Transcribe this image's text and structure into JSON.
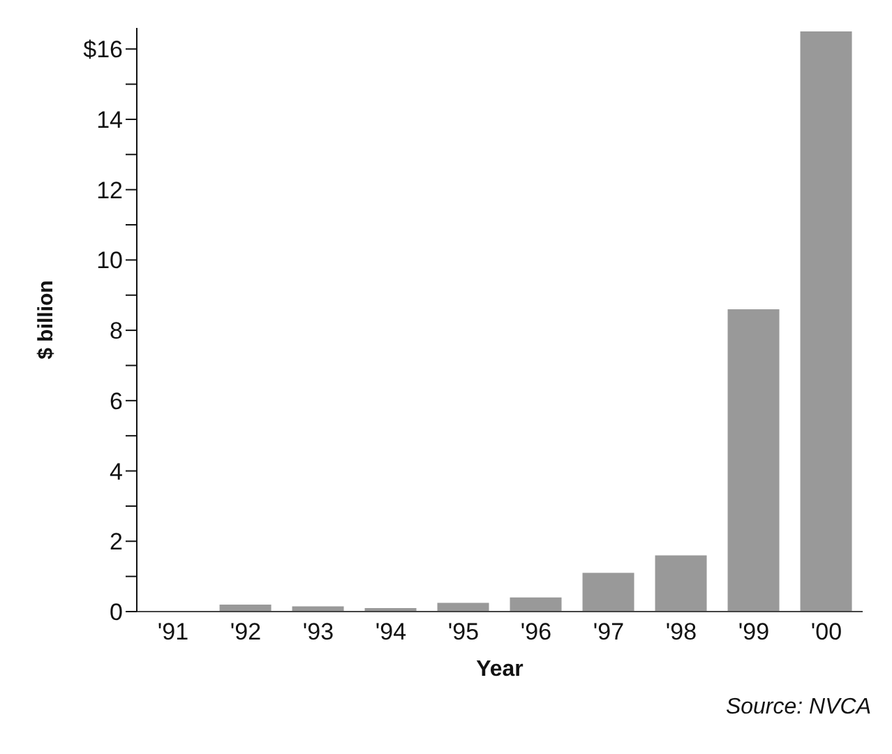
{
  "chart_data": {
    "type": "bar",
    "xlabel": "Year",
    "ylabel": "$ billion",
    "categories": [
      "'91",
      "'92",
      "'93",
      "'94",
      "'95",
      "'96",
      "'97",
      "'98",
      "'99",
      "'00"
    ],
    "values": [
      0,
      0.2,
      0.15,
      0.1,
      0.25,
      0.4,
      1.1,
      1.6,
      8.6,
      16.5
    ],
    "color": "#999999",
    "ylim": [
      0,
      16.6
    ],
    "yticks": [
      0,
      {
        "value": 1,
        "label": null
      },
      2,
      {
        "value": 3,
        "label": null
      },
      4,
      {
        "value": 5,
        "label": null
      },
      6,
      {
        "value": 7,
        "label": null
      },
      8,
      {
        "value": 9,
        "label": null
      },
      10,
      {
        "value": 11,
        "label": null
      },
      12,
      {
        "value": 13,
        "label": null
      },
      14,
      {
        "value": 15,
        "label": null
      },
      {
        "value": 16,
        "label": "$16"
      }
    ],
    "grid": false,
    "annotations": [
      "Source: NVCA"
    ]
  }
}
